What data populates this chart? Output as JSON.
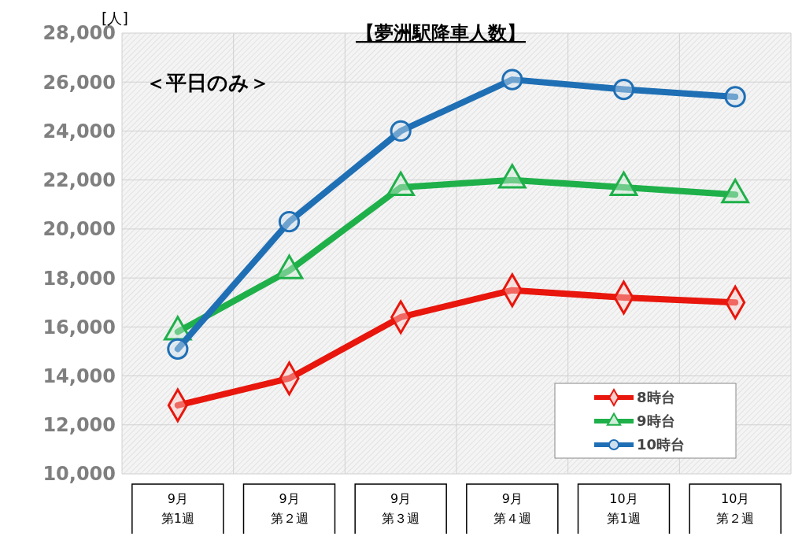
{
  "chart_data": {
    "type": "line",
    "title": "【夢洲駅降車人数】",
    "ylabel": "[人]",
    "annotations": [
      "＜平日のみ＞"
    ],
    "categories": [
      "9月第1週",
      "9月第２週",
      "9月第３週",
      "9月第４週",
      "10月第1週",
      "10月第２週"
    ],
    "series": [
      {
        "name": "8時台",
        "color": "#e8160c",
        "marker": "diamond",
        "values": [
          12800,
          13900,
          16400,
          17500,
          17200,
          17000
        ]
      },
      {
        "name": "9時台",
        "color": "#1fb04a",
        "marker": "triangle",
        "values": [
          15800,
          18300,
          21700,
          22000,
          21700,
          21400
        ]
      },
      {
        "name": "10時台",
        "color": "#1f6fb5",
        "marker": "circle",
        "values": [
          15100,
          20300,
          24000,
          26100,
          25700,
          25400
        ]
      }
    ],
    "ylim": [
      10000,
      28000
    ],
    "yticks": [
      {
        "value": 10000,
        "label": "10,000"
      },
      {
        "value": 12000,
        "label": "12,000"
      },
      {
        "value": 14000,
        "label": "14,000"
      },
      {
        "value": 16000,
        "label": "16,000"
      },
      {
        "value": 18000,
        "label": "18,000"
      },
      {
        "value": 20000,
        "label": "20,000"
      },
      {
        "value": 22000,
        "label": "22,000"
      },
      {
        "value": 24000,
        "label": "24,000"
      },
      {
        "value": 26000,
        "label": "26,000"
      },
      {
        "value": 28000,
        "label": "28,000"
      }
    ],
    "grid": true,
    "legend": "bottom right",
    "line_style": "solid"
  }
}
